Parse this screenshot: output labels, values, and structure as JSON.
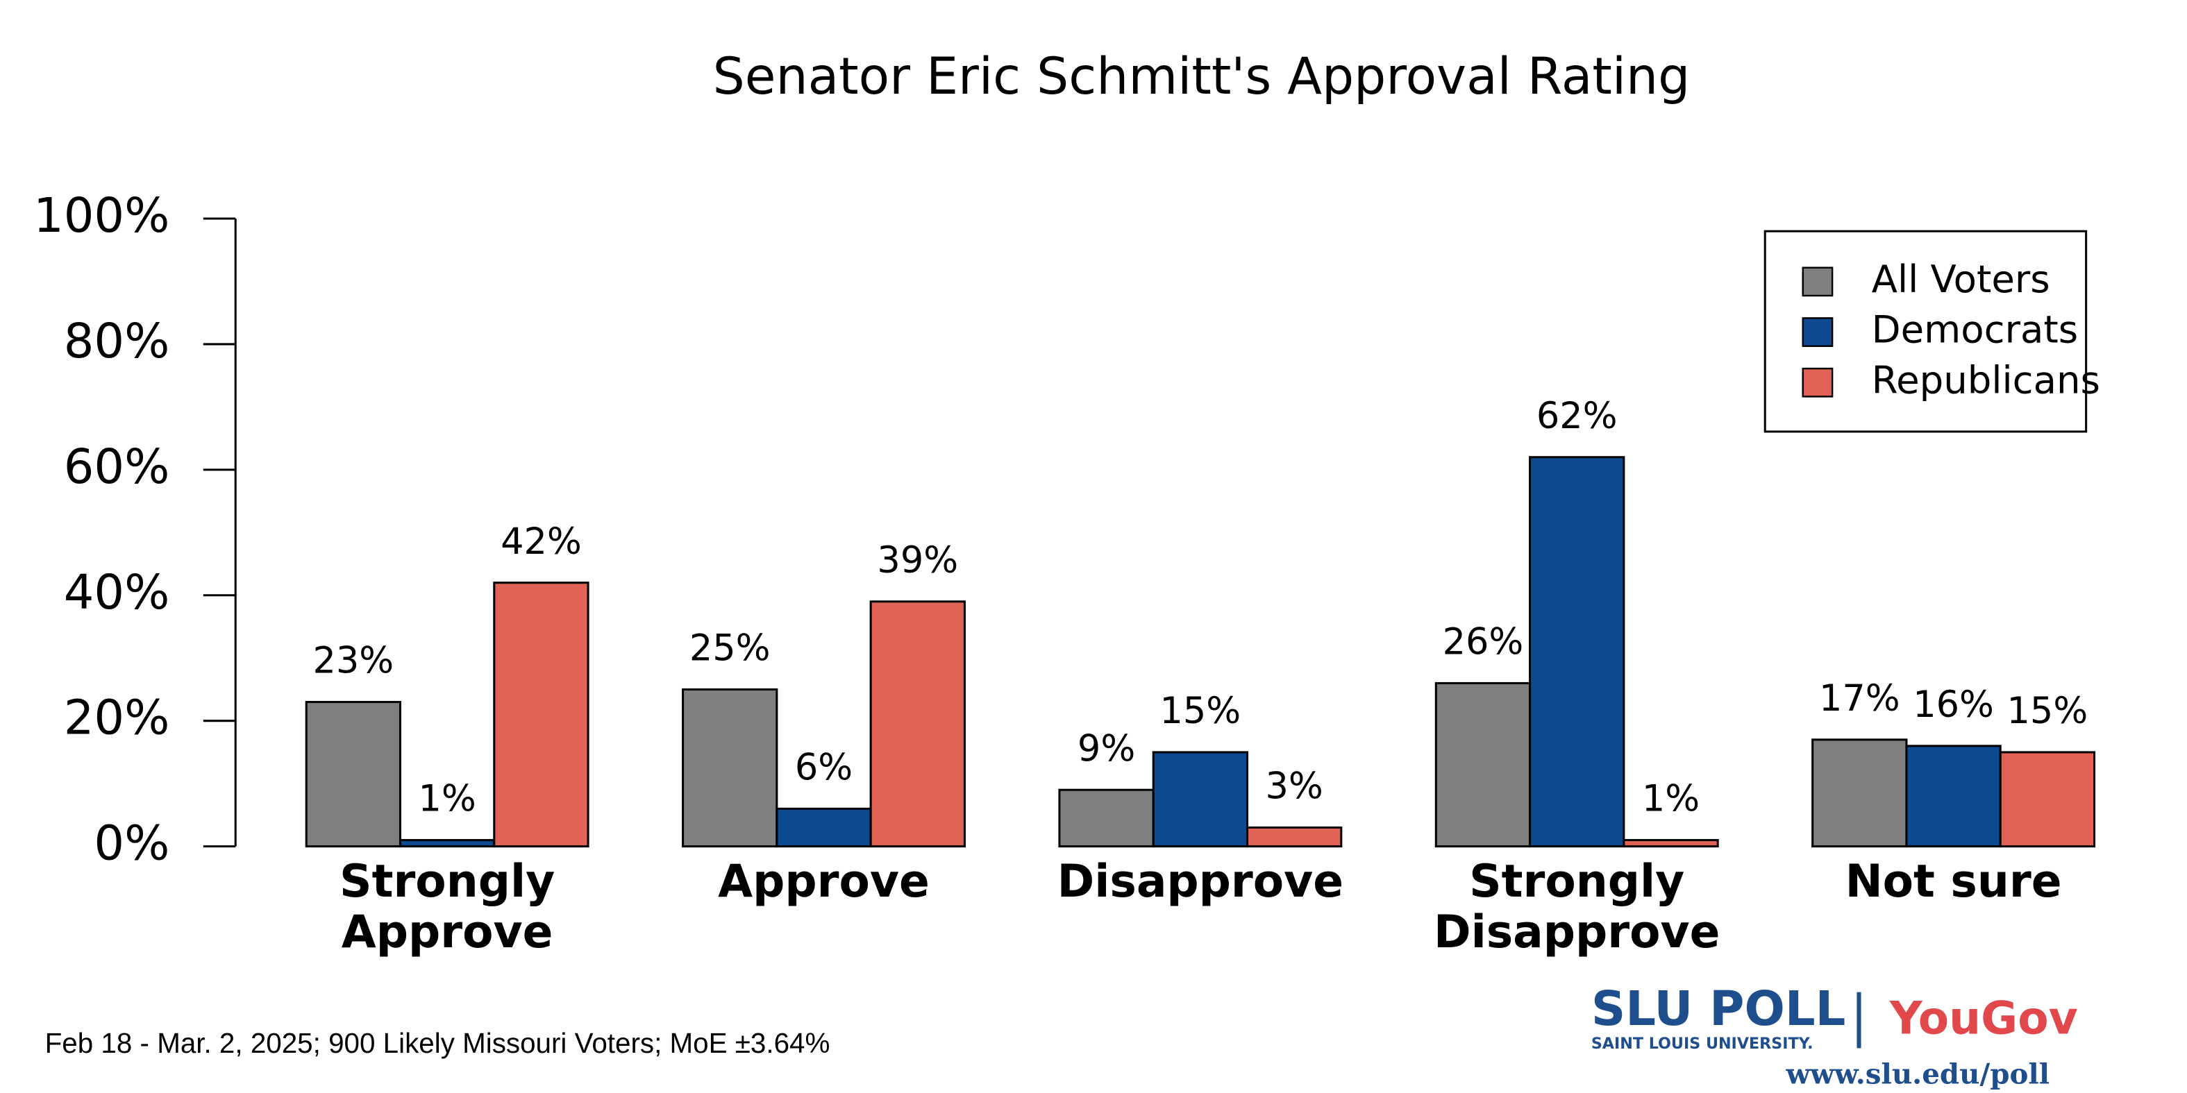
{
  "chart_data": {
    "type": "bar",
    "title": "Senator Eric Schmitt's Approval Rating",
    "categories": [
      [
        "Strongly",
        "Approve"
      ],
      [
        "Approve"
      ],
      [
        "Disapprove"
      ],
      [
        "Strongly",
        "Disapprove"
      ],
      [
        "Not sure"
      ]
    ],
    "series": [
      {
        "name": "All Voters",
        "color": "#7f7f7f",
        "values": [
          23,
          25,
          9,
          26,
          17
        ],
        "value_labels": [
          "23%",
          "25%",
          "9%",
          "26%",
          "17%"
        ]
      },
      {
        "name": "Democrats",
        "color": "#0d4a8f",
        "values": [
          1,
          6,
          15,
          62,
          16
        ],
        "value_labels": [
          "1%",
          "6%",
          "15%",
          "62%",
          "16%"
        ]
      },
      {
        "name": "Republicans",
        "color": "#e06355",
        "values": [
          42,
          39,
          3,
          1,
          15
        ],
        "value_labels": [
          "42%",
          "39%",
          "3%",
          "1%",
          "15%"
        ]
      }
    ],
    "ylim": [
      0,
      100
    ],
    "yticks": [
      {
        "value": 0,
        "label": "0%"
      },
      {
        "value": 20,
        "label": "20%"
      },
      {
        "value": 40,
        "label": "40%"
      },
      {
        "value": 60,
        "label": "60%"
      },
      {
        "value": 80,
        "label": "80%"
      },
      {
        "value": 100,
        "label": "100%"
      }
    ],
    "legend": "top-right",
    "source": "Feb 18 - Mar. 2, 2025; 900 Likely Missouri Voters; MoE ±3.64%"
  },
  "branding": {
    "slu_poll": "SLU POLL",
    "slu_name": "SAINT LOUIS UNIVERSITY.",
    "yougov": "YouGov",
    "url": "www.slu.edu/poll"
  }
}
